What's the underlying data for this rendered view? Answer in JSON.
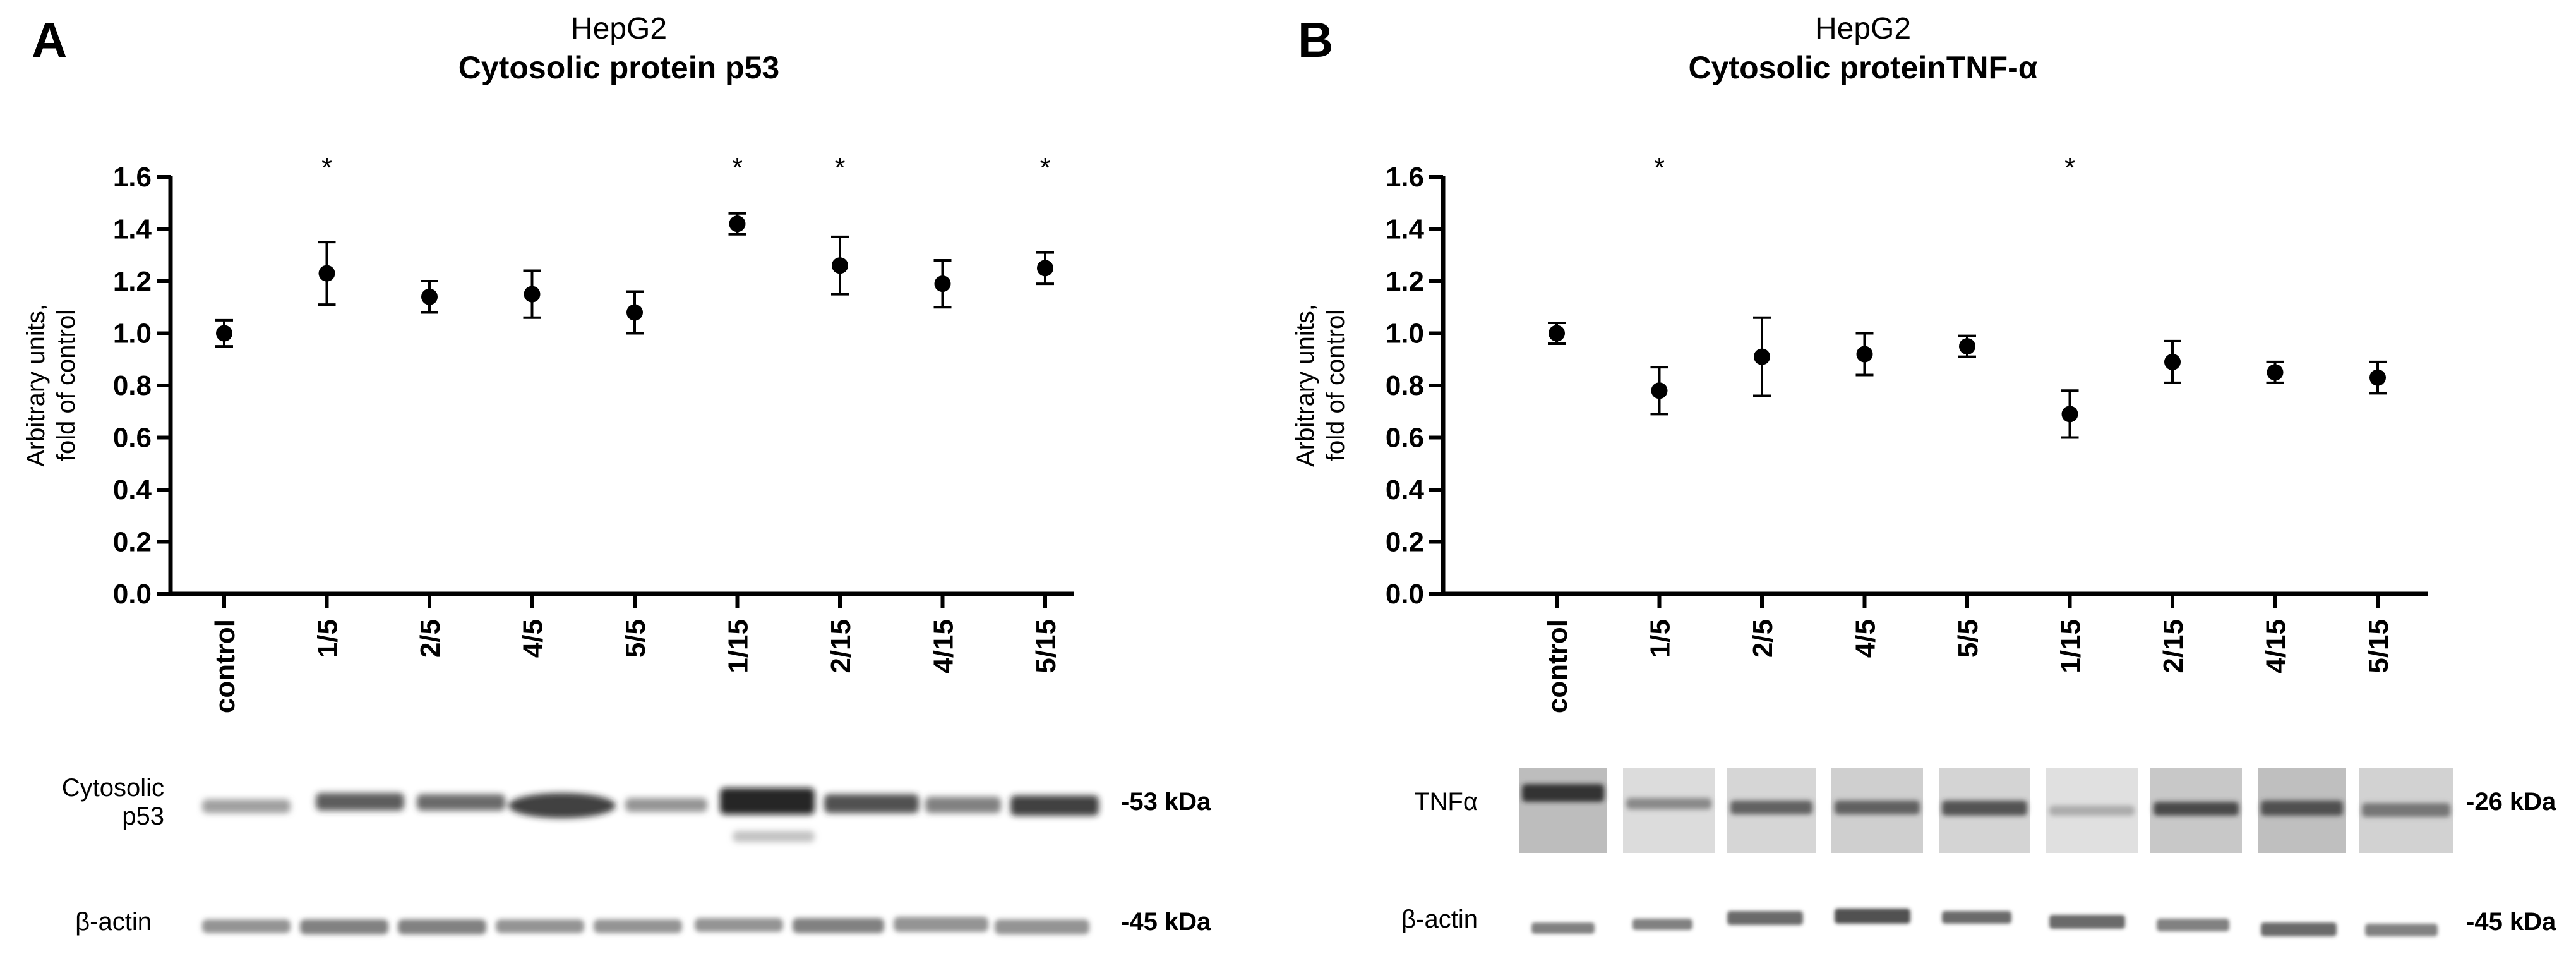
{
  "chart_data": [
    {
      "type": "scatter",
      "panel_label": "A",
      "title_line1": "HepG2",
      "title_line2": "Cytosolic protein p53",
      "ylabel_line1": "Arbitrary units,",
      "ylabel_line2": "fold of control",
      "xlabel": "",
      "ylim": [
        0,
        1.6
      ],
      "yticks": [
        "0.0",
        "0.2",
        "0.4",
        "0.6",
        "0.8",
        "1.0",
        "1.2",
        "1.4",
        "1.6"
      ],
      "categories": [
        "control",
        "1/5",
        "2/5",
        "4/5",
        "5/5",
        "1/15",
        "2/15",
        "4/15",
        "5/15"
      ],
      "values": [
        1.0,
        1.23,
        1.14,
        1.15,
        1.08,
        1.42,
        1.26,
        1.19,
        1.25
      ],
      "errors": [
        0.05,
        0.12,
        0.06,
        0.09,
        0.08,
        0.04,
        0.11,
        0.09,
        0.06
      ],
      "significance": [
        "",
        "*",
        "",
        "",
        "",
        "*",
        "*",
        "",
        "*"
      ],
      "blots": [
        {
          "label_line1": "Cytosolic",
          "label_line2": "p53",
          "kda": "-53 kDa"
        },
        {
          "label_line1": "β-actin",
          "label_line2": "",
          "kda": "-45 kDa"
        }
      ]
    },
    {
      "type": "scatter",
      "panel_label": "B",
      "title_line1": "HepG2",
      "title_line2": "Cytosolic proteinTNF-α",
      "ylabel_line1": "Arbitrary units,",
      "ylabel_line2": "fold of control",
      "xlabel": "",
      "ylim": [
        0,
        1.6
      ],
      "yticks": [
        "0.0",
        "0.2",
        "0.4",
        "0.6",
        "0.8",
        "1.0",
        "1.2",
        "1.4",
        "1.6"
      ],
      "categories": [
        "control",
        "1/5",
        "2/5",
        "4/5",
        "5/5",
        "1/15",
        "2/15",
        "4/15",
        "5/15"
      ],
      "values": [
        1.0,
        0.78,
        0.91,
        0.92,
        0.95,
        0.69,
        0.89,
        0.85,
        0.83
      ],
      "errors": [
        0.04,
        0.09,
        0.15,
        0.08,
        0.04,
        0.09,
        0.08,
        0.04,
        0.06
      ],
      "significance": [
        "",
        "*",
        "",
        "",
        "",
        "*",
        "",
        "",
        ""
      ],
      "blots": [
        {
          "label_line1": "TNFα",
          "label_line2": "",
          "kda": "-26 kDa"
        },
        {
          "label_line1": "β-actin",
          "label_line2": "",
          "kda": "-45 kDa"
        }
      ]
    }
  ]
}
